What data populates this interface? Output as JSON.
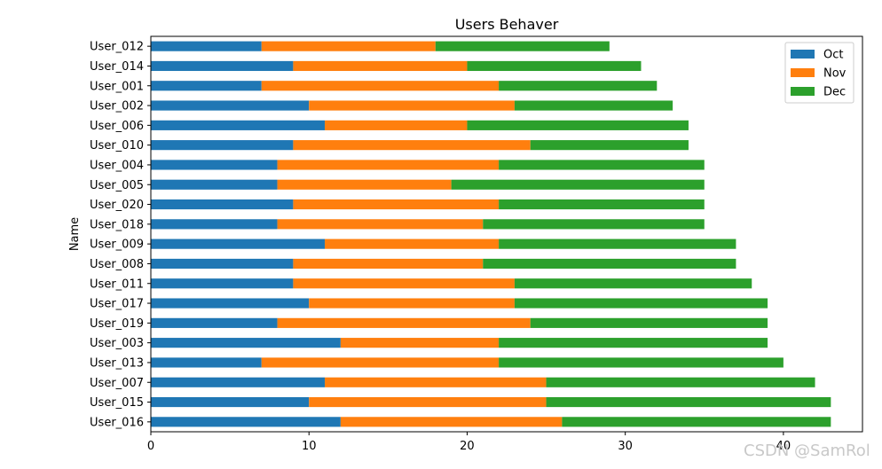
{
  "chart_data": {
    "type": "bar",
    "orientation": "horizontal",
    "stacked": true,
    "title": "Users Behaver",
    "xlabel": "",
    "ylabel": "Name",
    "xlim": [
      0,
      45
    ],
    "xticks": [
      0,
      10,
      20,
      30,
      40
    ],
    "grid": false,
    "legend_position": "top-right",
    "categories": [
      "User_012",
      "User_014",
      "User_001",
      "User_002",
      "User_006",
      "User_010",
      "User_004",
      "User_005",
      "User_020",
      "User_018",
      "User_009",
      "User_008",
      "User_011",
      "User_017",
      "User_019",
      "User_003",
      "User_013",
      "User_007",
      "User_015",
      "User_016"
    ],
    "series": [
      {
        "name": "Oct",
        "color": "#1f77b4",
        "values": [
          7,
          9,
          7,
          10,
          11,
          9,
          8,
          8,
          9,
          8,
          11,
          9,
          9,
          10,
          8,
          12,
          7,
          11,
          10,
          12
        ]
      },
      {
        "name": "Nov",
        "color": "#ff7f0e",
        "values": [
          11,
          11,
          15,
          13,
          9,
          15,
          14,
          11,
          13,
          13,
          11,
          12,
          14,
          13,
          16,
          10,
          15,
          14,
          15,
          14
        ]
      },
      {
        "name": "Dec",
        "color": "#2ca02c",
        "values": [
          11,
          11,
          10,
          10,
          14,
          10,
          13,
          16,
          13,
          14,
          15,
          16,
          15,
          16,
          15,
          17,
          18,
          17,
          18,
          17
        ]
      }
    ]
  },
  "watermark": "CSDN @SamRol"
}
